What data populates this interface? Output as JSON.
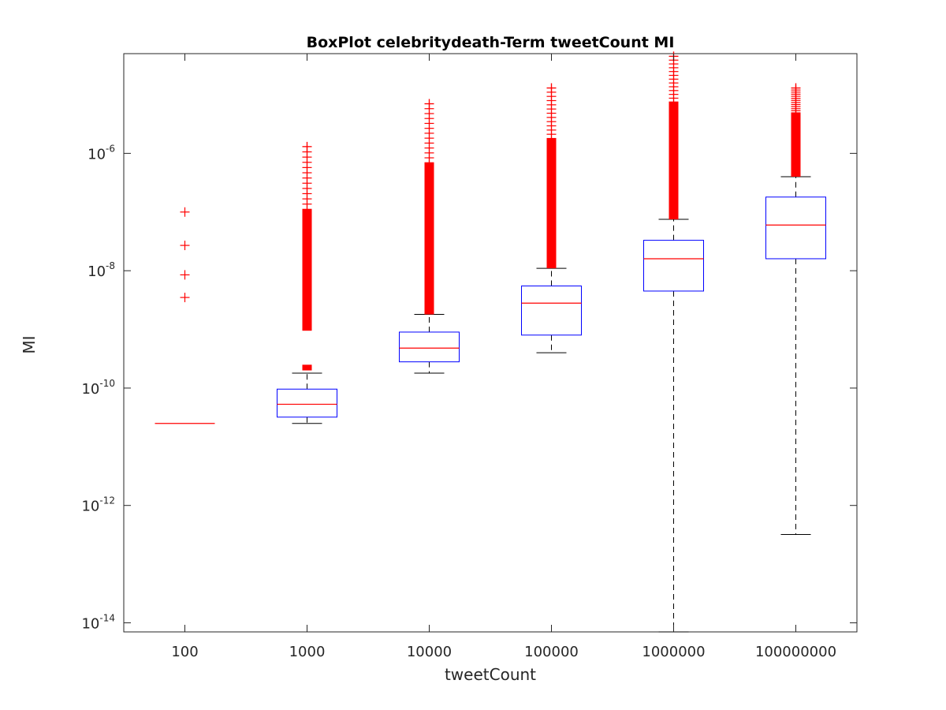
{
  "chart_data": {
    "type": "box",
    "title": "BoxPlot celebritydeath-Term tweetCount MI",
    "xlabel": "tweetCount",
    "ylabel": "MI",
    "yscale": "log",
    "ylim": [
      7e-15,
      5e-05
    ],
    "categories": [
      "100",
      "1000",
      "10000",
      "100000",
      "1000000",
      "100000000"
    ],
    "yticks": [
      {
        "base": "10",
        "exp": "-14",
        "value": 1e-14
      },
      {
        "base": "10",
        "exp": "-12",
        "value": 1e-12
      },
      {
        "base": "10",
        "exp": "-10",
        "value": 1e-10
      },
      {
        "base": "10",
        "exp": "-8",
        "value": 1e-08
      },
      {
        "base": "10",
        "exp": "-6",
        "value": 1e-06
      }
    ],
    "boxes": [
      {
        "category": "100",
        "q1": 2.5e-11,
        "median": 2.5e-11,
        "q3": 2.5e-11,
        "whisker_low": 2.5e-11,
        "whisker_high": 2.5e-11,
        "outliers": [
          1e-07,
          2.7e-08,
          8.5e-09,
          3.5e-09
        ]
      },
      {
        "category": "1000",
        "q1": 3.2e-11,
        "median": 5.3e-11,
        "q3": 9.6e-11,
        "whisker_low": 2.5e-11,
        "whisker_high": 1.8e-10,
        "outlier_range": [
          2e-10,
          1.3e-06
        ],
        "outlier_gap_range": [
          2.5e-10,
          9.5e-10
        ]
      },
      {
        "category": "10000",
        "q1": 2.8e-10,
        "median": 4.8e-10,
        "q3": 9e-10,
        "whisker_low": 1.8e-10,
        "whisker_high": 1.8e-09,
        "outlier_range": [
          1.8e-09,
          7e-06
        ]
      },
      {
        "category": "100000",
        "q1": 8e-10,
        "median": 2.8e-09,
        "q3": 5.5e-09,
        "whisker_low": 4e-10,
        "whisker_high": 1.1e-08,
        "outlier_range": [
          1.1e-08,
          1.3e-05
        ]
      },
      {
        "category": "1000000",
        "q1": 4.5e-09,
        "median": 1.6e-08,
        "q3": 3.3e-08,
        "whisker_low": 7e-15,
        "whisker_high": 7.5e-08,
        "outlier_range": [
          7.5e-08,
          4.5e-05
        ]
      },
      {
        "category": "100000000",
        "q1": 1.6e-08,
        "median": 6e-08,
        "q3": 1.8e-07,
        "whisker_low": 3.2e-13,
        "whisker_high": 4e-07,
        "outlier_range": [
          4e-07,
          1.3e-05
        ]
      }
    ],
    "colors": {
      "box": "#0000ff",
      "median": "#ff0000",
      "outlier": "#ff0000",
      "whisker": "#000000",
      "axis": "#262626"
    },
    "grid": false,
    "legend": "none"
  }
}
